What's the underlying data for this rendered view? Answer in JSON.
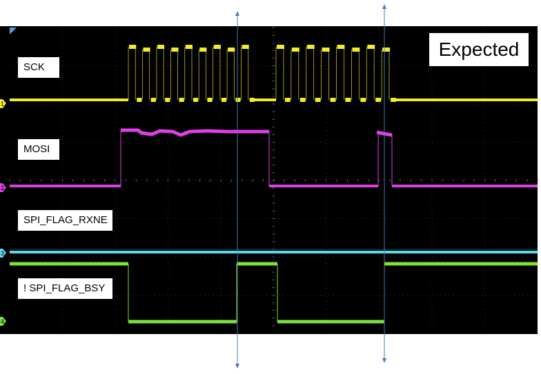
{
  "labels": {
    "sck": "SCK",
    "mosi": "MOSI",
    "rxne": "SPI_FLAG_RXNE",
    "bsy": "! SPI_FLAG_BSY"
  },
  "badge": "Expected",
  "channels": [
    {
      "id": "1",
      "color": "#f2ee2a"
    },
    {
      "id": "2",
      "color": "#e03ee6"
    },
    {
      "id": "3",
      "color": "#5fd8e8"
    },
    {
      "id": "4",
      "color": "#7fe03a"
    }
  ],
  "colors": {
    "screen": "#000000",
    "grid": "#3a3a3a",
    "marker": "#4a7ab8",
    "trigger": "#4ea3e0"
  },
  "burst_pulses": [
    9,
    8
  ]
}
